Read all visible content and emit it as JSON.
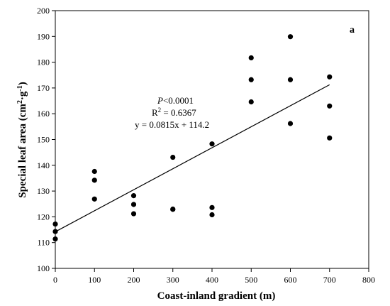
{
  "chart_data": {
    "type": "scatter",
    "panel_label": "a",
    "xlabel": "Coast-inland gradient (m)",
    "ylabel_main": "Special leaf area (cm",
    "ylabel_sup1": "2",
    "ylabel_dot": "·",
    "ylabel_g": "g",
    "ylabel_sup2": "-1",
    "ylabel_close": ")",
    "xlim": [
      0,
      800
    ],
    "ylim": [
      100,
      200
    ],
    "xticks": [
      "0",
      "100",
      "200",
      "300",
      "400",
      "500",
      "600",
      "700",
      "800"
    ],
    "yticks": [
      "100",
      "110",
      "120",
      "130",
      "140",
      "150",
      "160",
      "170",
      "180",
      "190",
      "200"
    ],
    "points": [
      {
        "x": 0,
        "y": 117.2
      },
      {
        "x": 0,
        "y": 114.3
      },
      {
        "x": 0,
        "y": 111.4
      },
      {
        "x": 100,
        "y": 137.6
      },
      {
        "x": 100,
        "y": 134.2
      },
      {
        "x": 100,
        "y": 126.9
      },
      {
        "x": 200,
        "y": 128.2
      },
      {
        "x": 200,
        "y": 124.8
      },
      {
        "x": 200,
        "y": 121.2
      },
      {
        "x": 300,
        "y": 143.1
      },
      {
        "x": 300,
        "y": 123.0
      },
      {
        "x": 300,
        "y": 122.9
      },
      {
        "x": 400,
        "y": 148.3
      },
      {
        "x": 400,
        "y": 123.6
      },
      {
        "x": 400,
        "y": 120.8
      },
      {
        "x": 500,
        "y": 181.7
      },
      {
        "x": 500,
        "y": 173.2
      },
      {
        "x": 500,
        "y": 164.6
      },
      {
        "x": 600,
        "y": 189.9
      },
      {
        "x": 600,
        "y": 173.2
      },
      {
        "x": 600,
        "y": 156.2
      },
      {
        "x": 700,
        "y": 174.3
      },
      {
        "x": 700,
        "y": 163.0
      },
      {
        "x": 700,
        "y": 150.6
      }
    ],
    "trendline": {
      "slope": 0.0815,
      "intercept": 114.2,
      "x_start": 0,
      "x_end": 700
    },
    "annotation": {
      "p_italic": "P",
      "p_rest": "<0.0001",
      "r2_prefix": "R",
      "r2_sup": "2",
      "r2_rest": " = 0.6367",
      "equation": "y = 0.0815x + 114.2"
    },
    "grid": false,
    "legend": "none"
  }
}
